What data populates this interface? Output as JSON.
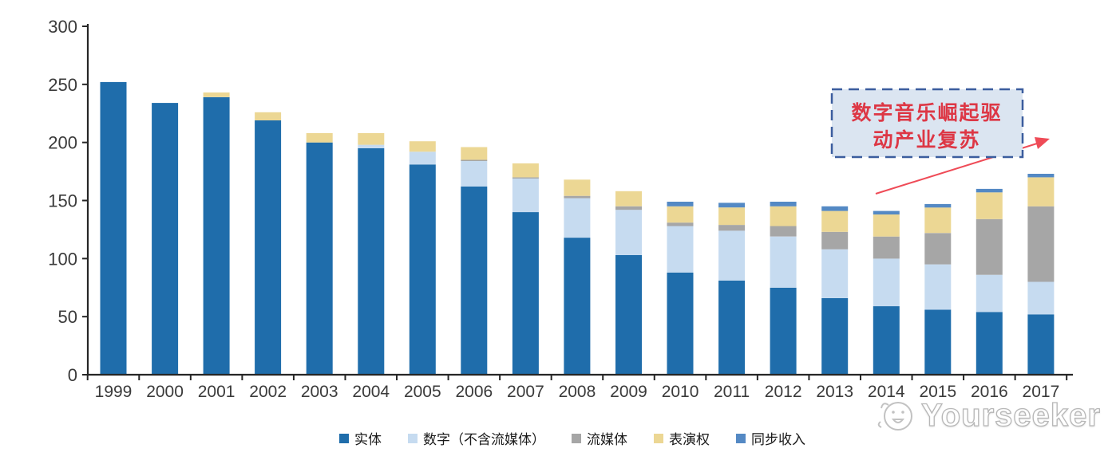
{
  "chart_data": {
    "type": "bar",
    "stacked": true,
    "categories": [
      "1999",
      "2000",
      "2001",
      "2002",
      "2003",
      "2004",
      "2005",
      "2006",
      "2007",
      "2008",
      "2009",
      "2010",
      "2011",
      "2012",
      "2013",
      "2014",
      "2015",
      "2016",
      "2017"
    ],
    "series": [
      {
        "name": "实体",
        "color": "#1f6dab",
        "values": [
          252,
          234,
          239,
          219,
          200,
          195,
          181,
          162,
          140,
          118,
          103,
          88,
          81,
          75,
          66,
          59,
          56,
          54,
          52
        ]
      },
      {
        "name": "数字（不含流媒体）",
        "color": "#c6dbf0",
        "values": [
          0,
          0,
          0,
          0,
          0,
          3,
          11,
          22,
          29,
          34,
          39,
          40,
          43,
          44,
          42,
          41,
          39,
          32,
          28
        ]
      },
      {
        "name": "流媒体",
        "color": "#a6a6a6",
        "values": [
          0,
          0,
          0,
          0,
          0,
          0,
          0,
          1,
          1,
          2,
          3,
          3,
          5,
          9,
          15,
          19,
          27,
          48,
          65
        ]
      },
      {
        "name": "表演权",
        "color": "#ecd794",
        "values": [
          0,
          0,
          4,
          7,
          8,
          10,
          9,
          11,
          12,
          14,
          13,
          14,
          15,
          17,
          18,
          19,
          22,
          23,
          25
        ]
      },
      {
        "name": "同步收入",
        "color": "#5489c4",
        "values": [
          0,
          0,
          0,
          0,
          0,
          0,
          0,
          0,
          0,
          0,
          0,
          4,
          4,
          4,
          4,
          3,
          3,
          3,
          3
        ]
      }
    ],
    "ylim": [
      0,
      300
    ],
    "ytick_step": 50,
    "grid": false,
    "legend_position": "bottom",
    "axis_color": "#262626",
    "tick_label_color": "#3a3a3a"
  },
  "annotation": {
    "line1": "数字音乐崛起驱",
    "line2": "动产业复苏",
    "text_color": "#dd3745",
    "border_color": "#3b5d9e",
    "bg_color": "#dbe5f1",
    "arrow_color": "#ef4b57"
  },
  "watermark": {
    "text": "Yourseeker"
  }
}
